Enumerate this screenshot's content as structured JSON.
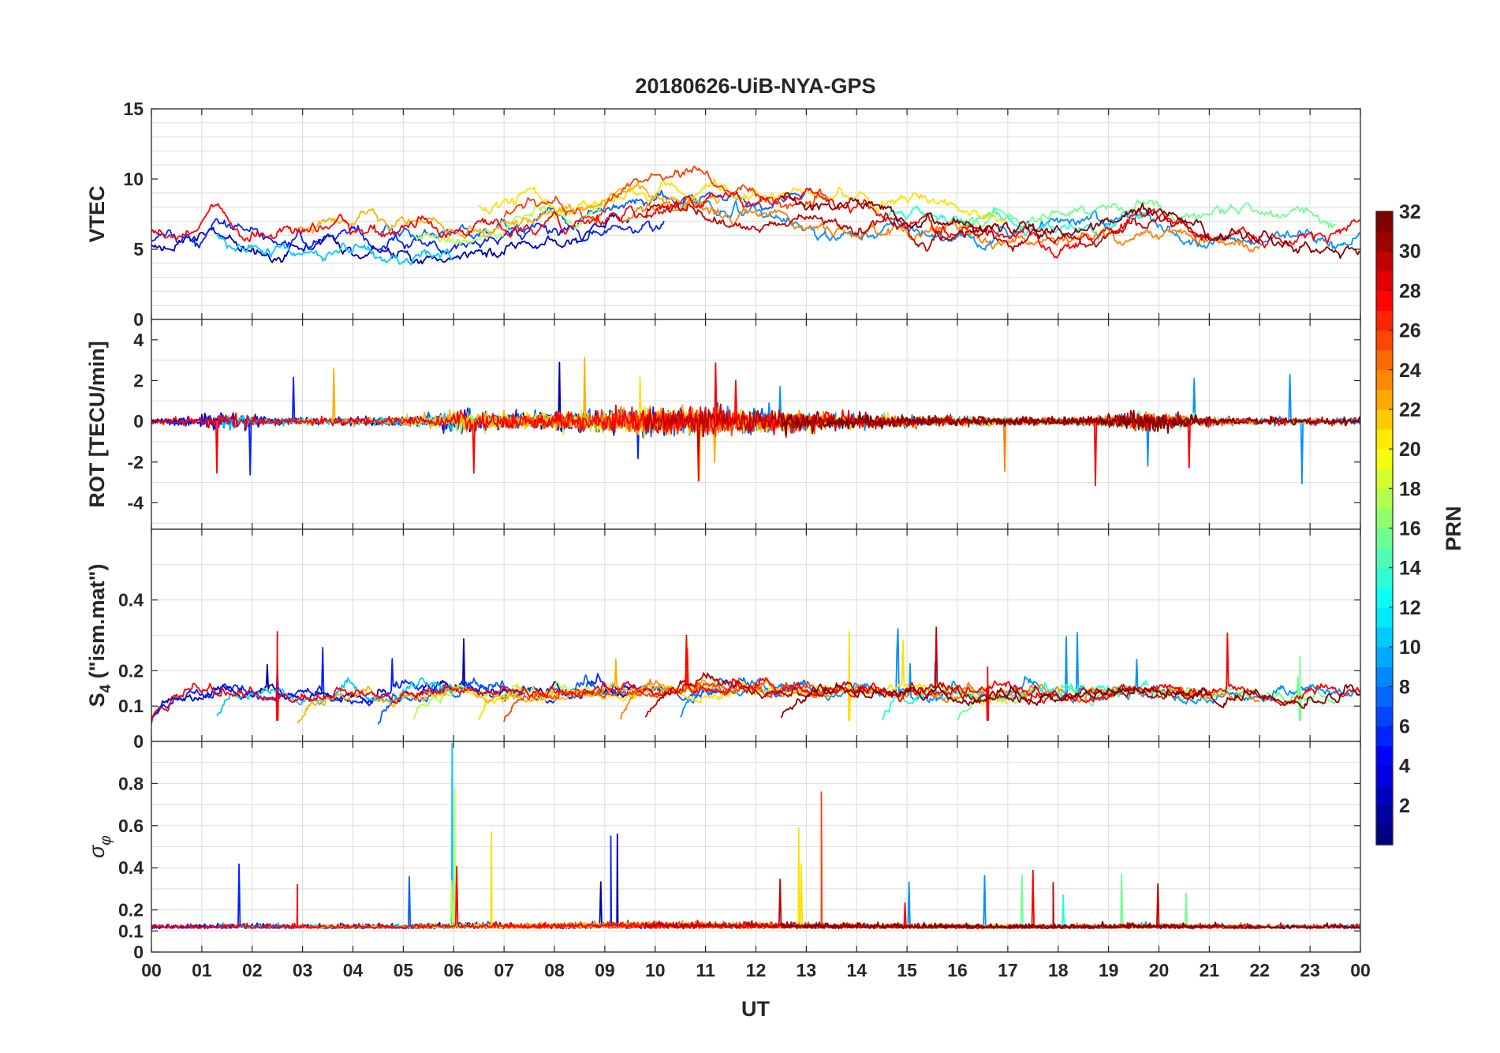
{
  "chart_data": {
    "type": "line",
    "title": "20180626-UiB-NYA-GPS",
    "xlabel": "UT",
    "x_tick_labels": [
      "00",
      "01",
      "02",
      "03",
      "04",
      "05",
      "06",
      "07",
      "08",
      "09",
      "10",
      "11",
      "12",
      "13",
      "14",
      "15",
      "16",
      "17",
      "18",
      "19",
      "20",
      "21",
      "22",
      "23",
      "00"
    ],
    "xlim": [
      0,
      24
    ],
    "panels": [
      {
        "id": "vtec",
        "ylabel": "VTEC",
        "ylim": [
          0,
          15
        ],
        "yticks": [
          0,
          5,
          10,
          15
        ],
        "ytick_labels": [
          "0",
          "5",
          "10",
          "15"
        ],
        "minor_y_grid": [
          1,
          2,
          3,
          4,
          6,
          7,
          8,
          9,
          11,
          12,
          13,
          14
        ],
        "series_kind": "vtec"
      },
      {
        "id": "rot",
        "ylabel": "ROT [TECU/min]",
        "ylim": [
          -5.3,
          5
        ],
        "yticks": [
          -4,
          -2,
          0,
          2,
          4
        ],
        "ytick_labels": [
          "-4",
          "-2",
          "0",
          "2",
          "4"
        ],
        "minor_y_grid": [
          -5,
          -3,
          -1,
          1,
          3,
          5
        ],
        "series_kind": "rot"
      },
      {
        "id": "s4",
        "ylabel": "S4 (\"ism.mat\")",
        "ylabel_main": "S",
        "ylabel_sub": "4",
        "ylabel_rest": " (\"ism.mat\")",
        "ylim": [
          0,
          0.6
        ],
        "yticks": [
          0,
          0.1,
          0.2,
          0.4
        ],
        "ytick_labels": [
          "0",
          "0.1",
          "0.2",
          "0.4"
        ],
        "minor_y_grid": [
          0.1,
          0.2,
          0.3,
          0.4,
          0.5
        ],
        "series_kind": "s4"
      },
      {
        "id": "sigma",
        "ylabel": "σφ",
        "ylabel_main": "σ",
        "ylabel_sub": "φ",
        "ylim": [
          0,
          1
        ],
        "yticks": [
          0,
          0.1,
          0.2,
          0.4,
          0.6,
          0.8
        ],
        "ytick_labels": [
          "0",
          "0.1",
          "0.2",
          "0.4",
          "0.6",
          "0.8"
        ],
        "minor_y_grid": [
          0.1,
          0.2,
          0.3,
          0.4,
          0.5,
          0.6,
          0.7,
          0.8,
          0.9
        ],
        "series_kind": "sigma"
      }
    ],
    "colorbar": {
      "label": "PRN",
      "range": [
        1,
        32
      ],
      "ticks": [
        2,
        4,
        6,
        8,
        10,
        12,
        14,
        16,
        18,
        20,
        22,
        24,
        26,
        28,
        30,
        32
      ],
      "tick_labels": [
        "2",
        "4",
        "6",
        "8",
        "10",
        "12",
        "14",
        "16",
        "18",
        "20",
        "22",
        "24",
        "26",
        "28",
        "30",
        "32"
      ],
      "colormap": "jet"
    },
    "series": [
      {
        "prn": 2,
        "color": "#0000b0",
        "vtec_base": 5.2,
        "start": 0.0,
        "end": 9.5
      },
      {
        "prn": 5,
        "color": "#0020ff",
        "vtec_base": 5.6,
        "start": 0.0,
        "end": 10.2
      },
      {
        "prn": 7,
        "color": "#0060ff",
        "vtec_base": 6.2,
        "start": 4.5,
        "end": 13.0
      },
      {
        "prn": 9,
        "color": "#0090ff",
        "vtec_base": 5.9,
        "start": 10.5,
        "end": 24.0
      },
      {
        "prn": 11,
        "color": "#00c8ff",
        "vtec_base": 4.8,
        "start": 1.3,
        "end": 6.0
      },
      {
        "prn": 13,
        "color": "#20ffe0",
        "vtec_base": 6.6,
        "start": 14.5,
        "end": 19.8
      },
      {
        "prn": 16,
        "color": "#70ff90",
        "vtec_base": 6.9,
        "start": 16.0,
        "end": 23.5
      },
      {
        "prn": 18,
        "color": "#b0ff50",
        "vtec_base": 6.0,
        "start": 5.2,
        "end": 9.0
      },
      {
        "prn": 20,
        "color": "#ffe000",
        "vtec_base": 7.6,
        "start": 6.5,
        "end": 17.0
      },
      {
        "prn": 22,
        "color": "#ffb000",
        "vtec_base": 6.8,
        "start": 2.9,
        "end": 11.3
      },
      {
        "prn": 24,
        "color": "#ff8000",
        "vtec_base": 5.8,
        "start": 9.3,
        "end": 22.0
      },
      {
        "prn": 26,
        "color": "#ff4000",
        "vtec_base": 7.1,
        "start": 7.0,
        "end": 13.5
      },
      {
        "prn": 28,
        "color": "#ff0000",
        "vtec_base": 6.3,
        "start": 0.0,
        "end": 24.0
      },
      {
        "prn": 30,
        "color": "#c00000",
        "vtec_base": 6.0,
        "start": 9.8,
        "end": 21.0
      },
      {
        "prn": 32,
        "color": "#800000",
        "vtec_base": 6.4,
        "start": 12.5,
        "end": 24.0
      }
    ]
  }
}
